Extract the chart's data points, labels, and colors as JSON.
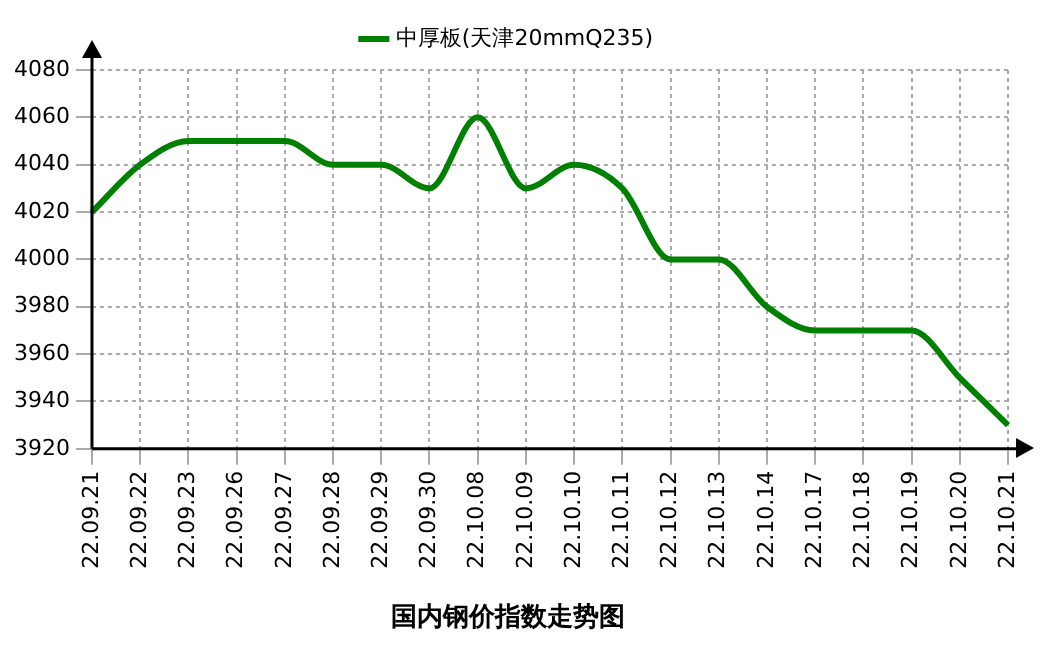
{
  "chart_data": {
    "type": "line",
    "title": "国内钢价指数走势图",
    "categories": [
      "22.09.21",
      "22.09.22",
      "22.09.23",
      "22.09.26",
      "22.09.27",
      "22.09.28",
      "22.09.29",
      "22.09.30",
      "22.10.08",
      "22.10.09",
      "22.10.10",
      "22.10.11",
      "22.10.12",
      "22.10.13",
      "22.10.14",
      "22.10.17",
      "22.10.18",
      "22.10.19",
      "22.10.20",
      "22.10.21"
    ],
    "series": [
      {
        "name": "中厚板(天津20mmQ235)",
        "color": "#008000",
        "values": [
          4020,
          4040,
          4050,
          4050,
          4050,
          4040,
          4040,
          4030,
          4060,
          4030,
          4040,
          4030,
          4000,
          4000,
          3980,
          3970,
          3970,
          3970,
          3950,
          3930
        ]
      }
    ],
    "ylim": [
      3920,
      4080
    ],
    "yticks": [
      3920,
      3940,
      3960,
      3980,
      4000,
      4020,
      4040,
      4060,
      4080
    ],
    "grid": true,
    "legend": "top",
    "marker": "none",
    "line_style": "solid"
  }
}
